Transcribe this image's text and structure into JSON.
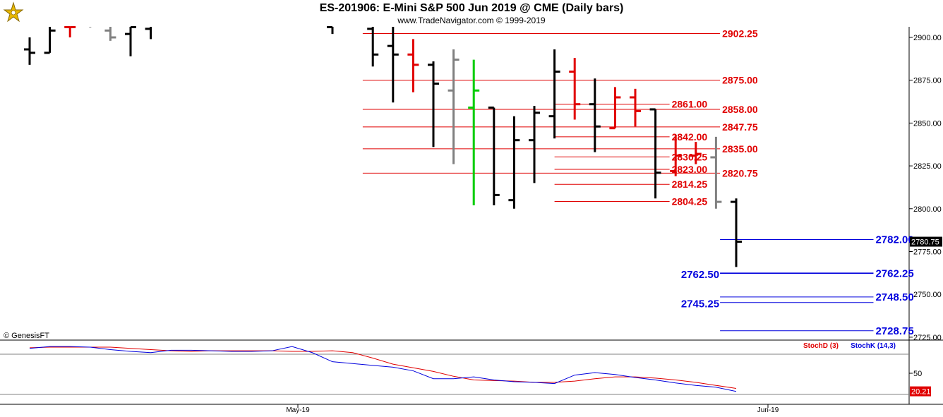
{
  "header": {
    "title": "ES-201906:  E-Mini S&P 500 Jun 2019 @ CME  (Daily bars)",
    "subtitle": "www.TradeNavigator.com © 1999-2019",
    "logo_icon": "tradenavigator-logo-icon"
  },
  "copyright": "© GenesisFT",
  "last_price": "2780.75",
  "colors": {
    "up_bar": "#000000",
    "down_bar": "#e00000",
    "neutral_bar": "#808080",
    "green_bar": "#00cc00",
    "red_level": "#e00000",
    "blue_level": "#0000dd",
    "stoch_d": "#e00000",
    "stoch_k": "#0000dd"
  },
  "chart_data": [
    {
      "type": "ohlc",
      "title": "ES-201906:  E-Mini S&P 500 Jun 2019 @ CME  (Daily bars)",
      "ylim": [
        2718,
        2912
      ],
      "yticks": [
        "2900.00",
        "2875.00",
        "2850.00",
        "2825.00",
        "2800.00",
        "2775.00",
        "2750.00",
        "2725.00"
      ],
      "xticks": [
        "May-19",
        "Jun-19"
      ],
      "bars": [
        {
          "i": 0,
          "o": 2893,
          "h": 2900,
          "l": 2884,
          "c": 2891,
          "color": "black"
        },
        {
          "i": 1,
          "o": 2891,
          "h": 2908,
          "l": 2891,
          "c": 2904,
          "color": "black"
        },
        {
          "i": 2,
          "o": 2906,
          "h": 2912,
          "l": 2900,
          "c": 2906,
          "color": "red"
        },
        {
          "i": 3,
          "o": 2910,
          "h": 2912,
          "l": 2906,
          "c": 2908,
          "color": "black"
        },
        {
          "i": 4,
          "o": 2904,
          "h": 2912,
          "l": 2898,
          "c": 2900,
          "color": "gray"
        },
        {
          "i": 5,
          "o": 2902,
          "h": 2912,
          "l": 2889,
          "c": 2906,
          "color": "black"
        },
        {
          "i": 6,
          "o": 2905,
          "h": 2912,
          "l": 2899,
          "c": 2907,
          "color": "black"
        },
        {
          "i": 15,
          "o": 2906,
          "h": 2912,
          "l": 2902,
          "c": 2908,
          "color": "black"
        },
        {
          "i": 17,
          "o": 2905,
          "h": 2912,
          "l": 2883,
          "c": 2890,
          "color": "black"
        },
        {
          "i": 18,
          "o": 2895,
          "h": 2912,
          "l": 2862,
          "c": 2890,
          "color": "black"
        },
        {
          "i": 19,
          "o": 2890,
          "h": 2899,
          "l": 2868,
          "c": 2884,
          "color": "red"
        },
        {
          "i": 20,
          "o": 2884,
          "h": 2886,
          "l": 2836,
          "c": 2873,
          "color": "black"
        },
        {
          "i": 21,
          "o": 2869,
          "h": 2893,
          "l": 2826,
          "c": 2887,
          "color": "gray"
        },
        {
          "i": 22,
          "o": 2859,
          "h": 2887,
          "l": 2802,
          "c": 2869,
          "color": "green"
        },
        {
          "i": 23,
          "o": 2859,
          "h": 2859,
          "l": 2802,
          "c": 2808,
          "color": "black"
        },
        {
          "i": 24,
          "o": 2805,
          "h": 2854,
          "l": 2800,
          "c": 2840,
          "color": "black"
        },
        {
          "i": 25,
          "o": 2840,
          "h": 2860,
          "l": 2815,
          "c": 2856,
          "color": "black"
        },
        {
          "i": 26,
          "o": 2854,
          "h": 2893,
          "l": 2841,
          "c": 2880,
          "color": "black"
        },
        {
          "i": 27,
          "o": 2880,
          "h": 2888,
          "l": 2852,
          "c": 2861,
          "color": "red"
        },
        {
          "i": 28,
          "o": 2861,
          "h": 2876,
          "l": 2833,
          "c": 2848,
          "color": "black"
        },
        {
          "i": 29,
          "o": 2847,
          "h": 2871,
          "l": 2847,
          "c": 2865,
          "color": "red"
        },
        {
          "i": 30,
          "o": 2865,
          "h": 2870,
          "l": 2848,
          "c": 2857,
          "color": "red"
        },
        {
          "i": 31,
          "o": 2858,
          "h": 2858,
          "l": 2806,
          "c": 2821,
          "color": "black"
        },
        {
          "i": 32,
          "o": 2822,
          "h": 2843,
          "l": 2819,
          "c": 2831,
          "color": "red"
        },
        {
          "i": 33,
          "o": 2831,
          "h": 2839,
          "l": 2826,
          "c": 2832,
          "color": "red"
        },
        {
          "i": 34,
          "o": 2830,
          "h": 2842,
          "l": 2800,
          "c": 2804,
          "color": "gray"
        },
        {
          "i": 35,
          "o": 2804,
          "h": 2806,
          "l": 2766,
          "c": 2780.75,
          "color": "black"
        }
      ],
      "levels": [
        {
          "label": "2902.25",
          "y": 2902.25,
          "x0": 16.5,
          "x1": 34.2,
          "color": "red",
          "pos": "right"
        },
        {
          "label": "2875.00",
          "y": 2875.0,
          "x0": 16.5,
          "x1": 34.2,
          "color": "red",
          "pos": "right"
        },
        {
          "label": "2861.00",
          "y": 2861.0,
          "x0": 26.0,
          "x1": 31.7,
          "color": "red",
          "pos": "right"
        },
        {
          "label": "2858.00",
          "y": 2858.0,
          "x0": 16.5,
          "x1": 34.2,
          "color": "red",
          "pos": "right"
        },
        {
          "label": "2847.75",
          "y": 2847.75,
          "x0": 16.5,
          "x1": 34.2,
          "color": "red",
          "pos": "right"
        },
        {
          "label": "2842.00",
          "y": 2842.0,
          "x0": 26.0,
          "x1": 31.7,
          "color": "red",
          "pos": "right"
        },
        {
          "label": "2835.00",
          "y": 2835.0,
          "x0": 16.5,
          "x1": 34.2,
          "color": "red",
          "pos": "right"
        },
        {
          "label": "2830.25",
          "y": 2830.25,
          "x0": 26.0,
          "x1": 31.7,
          "color": "red",
          "pos": "right"
        },
        {
          "label": "2823.00",
          "y": 2823.0,
          "x0": 26.0,
          "x1": 31.7,
          "color": "red",
          "pos": "right"
        },
        {
          "label": "2820.75",
          "y": 2820.75,
          "x0": 16.5,
          "x1": 34.2,
          "color": "red",
          "pos": "right"
        },
        {
          "label": "2814.25",
          "y": 2814.25,
          "x0": 26.0,
          "x1": 31.7,
          "color": "red",
          "pos": "right"
        },
        {
          "label": "2804.25",
          "y": 2804.25,
          "x0": 26.0,
          "x1": 31.7,
          "color": "red",
          "pos": "right"
        },
        {
          "label": "2782.00",
          "y": 2782.0,
          "x0": 34.2,
          "x1": 41.8,
          "color": "blue",
          "pos": "right"
        },
        {
          "label": "2762.25",
          "y": 2762.25,
          "x0": 34.2,
          "x1": 41.8,
          "color": "blue",
          "pos": "right"
        },
        {
          "label": "2762.50",
          "y": 2762.5,
          "x0": 34.2,
          "x1": 41.8,
          "color": "blue",
          "pos": "left-below"
        },
        {
          "label": "2748.50",
          "y": 2748.5,
          "x0": 34.2,
          "x1": 41.8,
          "color": "blue",
          "pos": "right"
        },
        {
          "label": "2745.25",
          "y": 2745.25,
          "x0": 34.2,
          "x1": 41.8,
          "color": "blue",
          "pos": "left-below"
        },
        {
          "label": "2728.75",
          "y": 2728.75,
          "x0": 34.2,
          "x1": 41.8,
          "color": "blue",
          "pos": "right"
        }
      ]
    },
    {
      "type": "line",
      "title": "",
      "ylim": [
        0,
        100
      ],
      "yticks": [
        "50"
      ],
      "last_value": "20.21",
      "series": [
        {
          "name": "StochD (3)",
          "color": "red",
          "x": [
            0,
            1,
            2,
            3,
            4,
            5,
            6,
            7,
            8,
            9,
            10,
            11,
            12,
            13,
            14,
            15,
            16,
            17,
            18,
            19,
            20,
            21,
            22,
            23,
            24,
            25,
            26,
            27,
            28,
            29,
            30,
            31,
            32,
            33,
            34,
            35
          ],
          "values": [
            92,
            93,
            93,
            93,
            93,
            91,
            89,
            87,
            86,
            87,
            87,
            87,
            87,
            86,
            86,
            87,
            84,
            75,
            65,
            59,
            53,
            45,
            39,
            38,
            37,
            35,
            35,
            37,
            41,
            44,
            44,
            42,
            39,
            35,
            30,
            25
          ]
        },
        {
          "name": "StochK (14,3)",
          "color": "blue",
          "x": [
            0,
            1,
            2,
            3,
            4,
            5,
            6,
            7,
            8,
            9,
            10,
            11,
            12,
            13,
            14,
            15,
            16,
            17,
            18,
            19,
            20,
            21,
            22,
            23,
            24,
            25,
            26,
            27,
            28,
            29,
            30,
            31,
            32,
            33,
            34,
            35
          ],
          "values": [
            91,
            94,
            94,
            93,
            89,
            86,
            84,
            88,
            88,
            87,
            86,
            86,
            87,
            94,
            84,
            69,
            66,
            63,
            60,
            54,
            41,
            41,
            44,
            39,
            36,
            35,
            33,
            47,
            51,
            48,
            43,
            39,
            34,
            30,
            27,
            20
          ]
        }
      ]
    }
  ]
}
